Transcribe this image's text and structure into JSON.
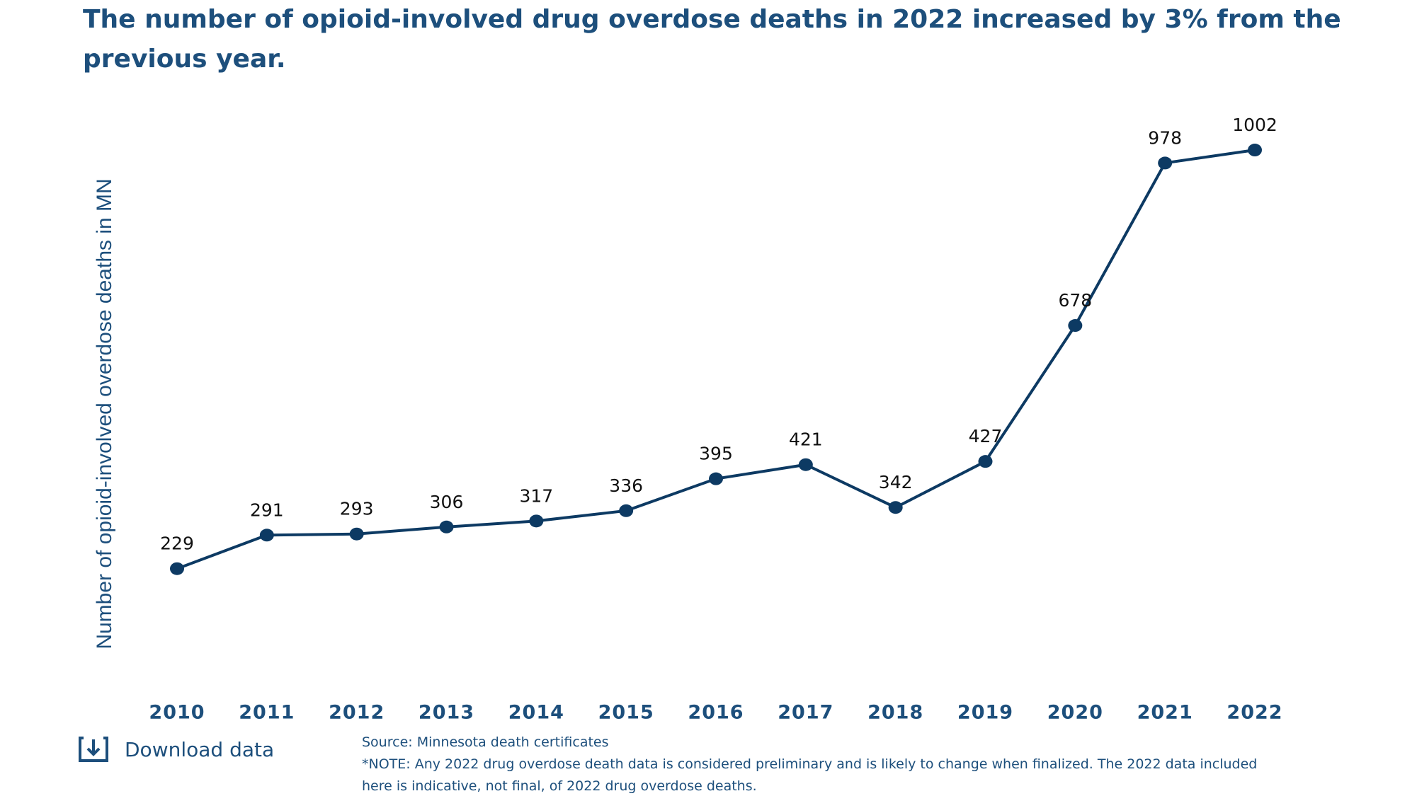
{
  "chart_data": {
    "type": "line",
    "title": "The number of opioid-involved drug overdose deaths in 2022 increased by 3% from the previous year.",
    "y_label": "Number of opioid-involved overdose deaths in MN",
    "categories": [
      "2010",
      "2011",
      "2012",
      "2013",
      "2014",
      "2015",
      "2016",
      "2017",
      "2018",
      "2019",
      "2020",
      "2021",
      "2022"
    ],
    "values": [
      229,
      291,
      293,
      306,
      317,
      336,
      395,
      421,
      342,
      427,
      678,
      978,
      1002
    ],
    "color": "#0d3a63",
    "ylim": [
      0,
      1100
    ]
  },
  "download_label": "Download data",
  "source": "Source: Minnesota death certificates",
  "note": "*NOTE: Any 2022 drug overdose death data is considered preliminary and is likely to change when finalized. The 2022 data included here is indicative, not final, of 2022 drug overdose deaths."
}
